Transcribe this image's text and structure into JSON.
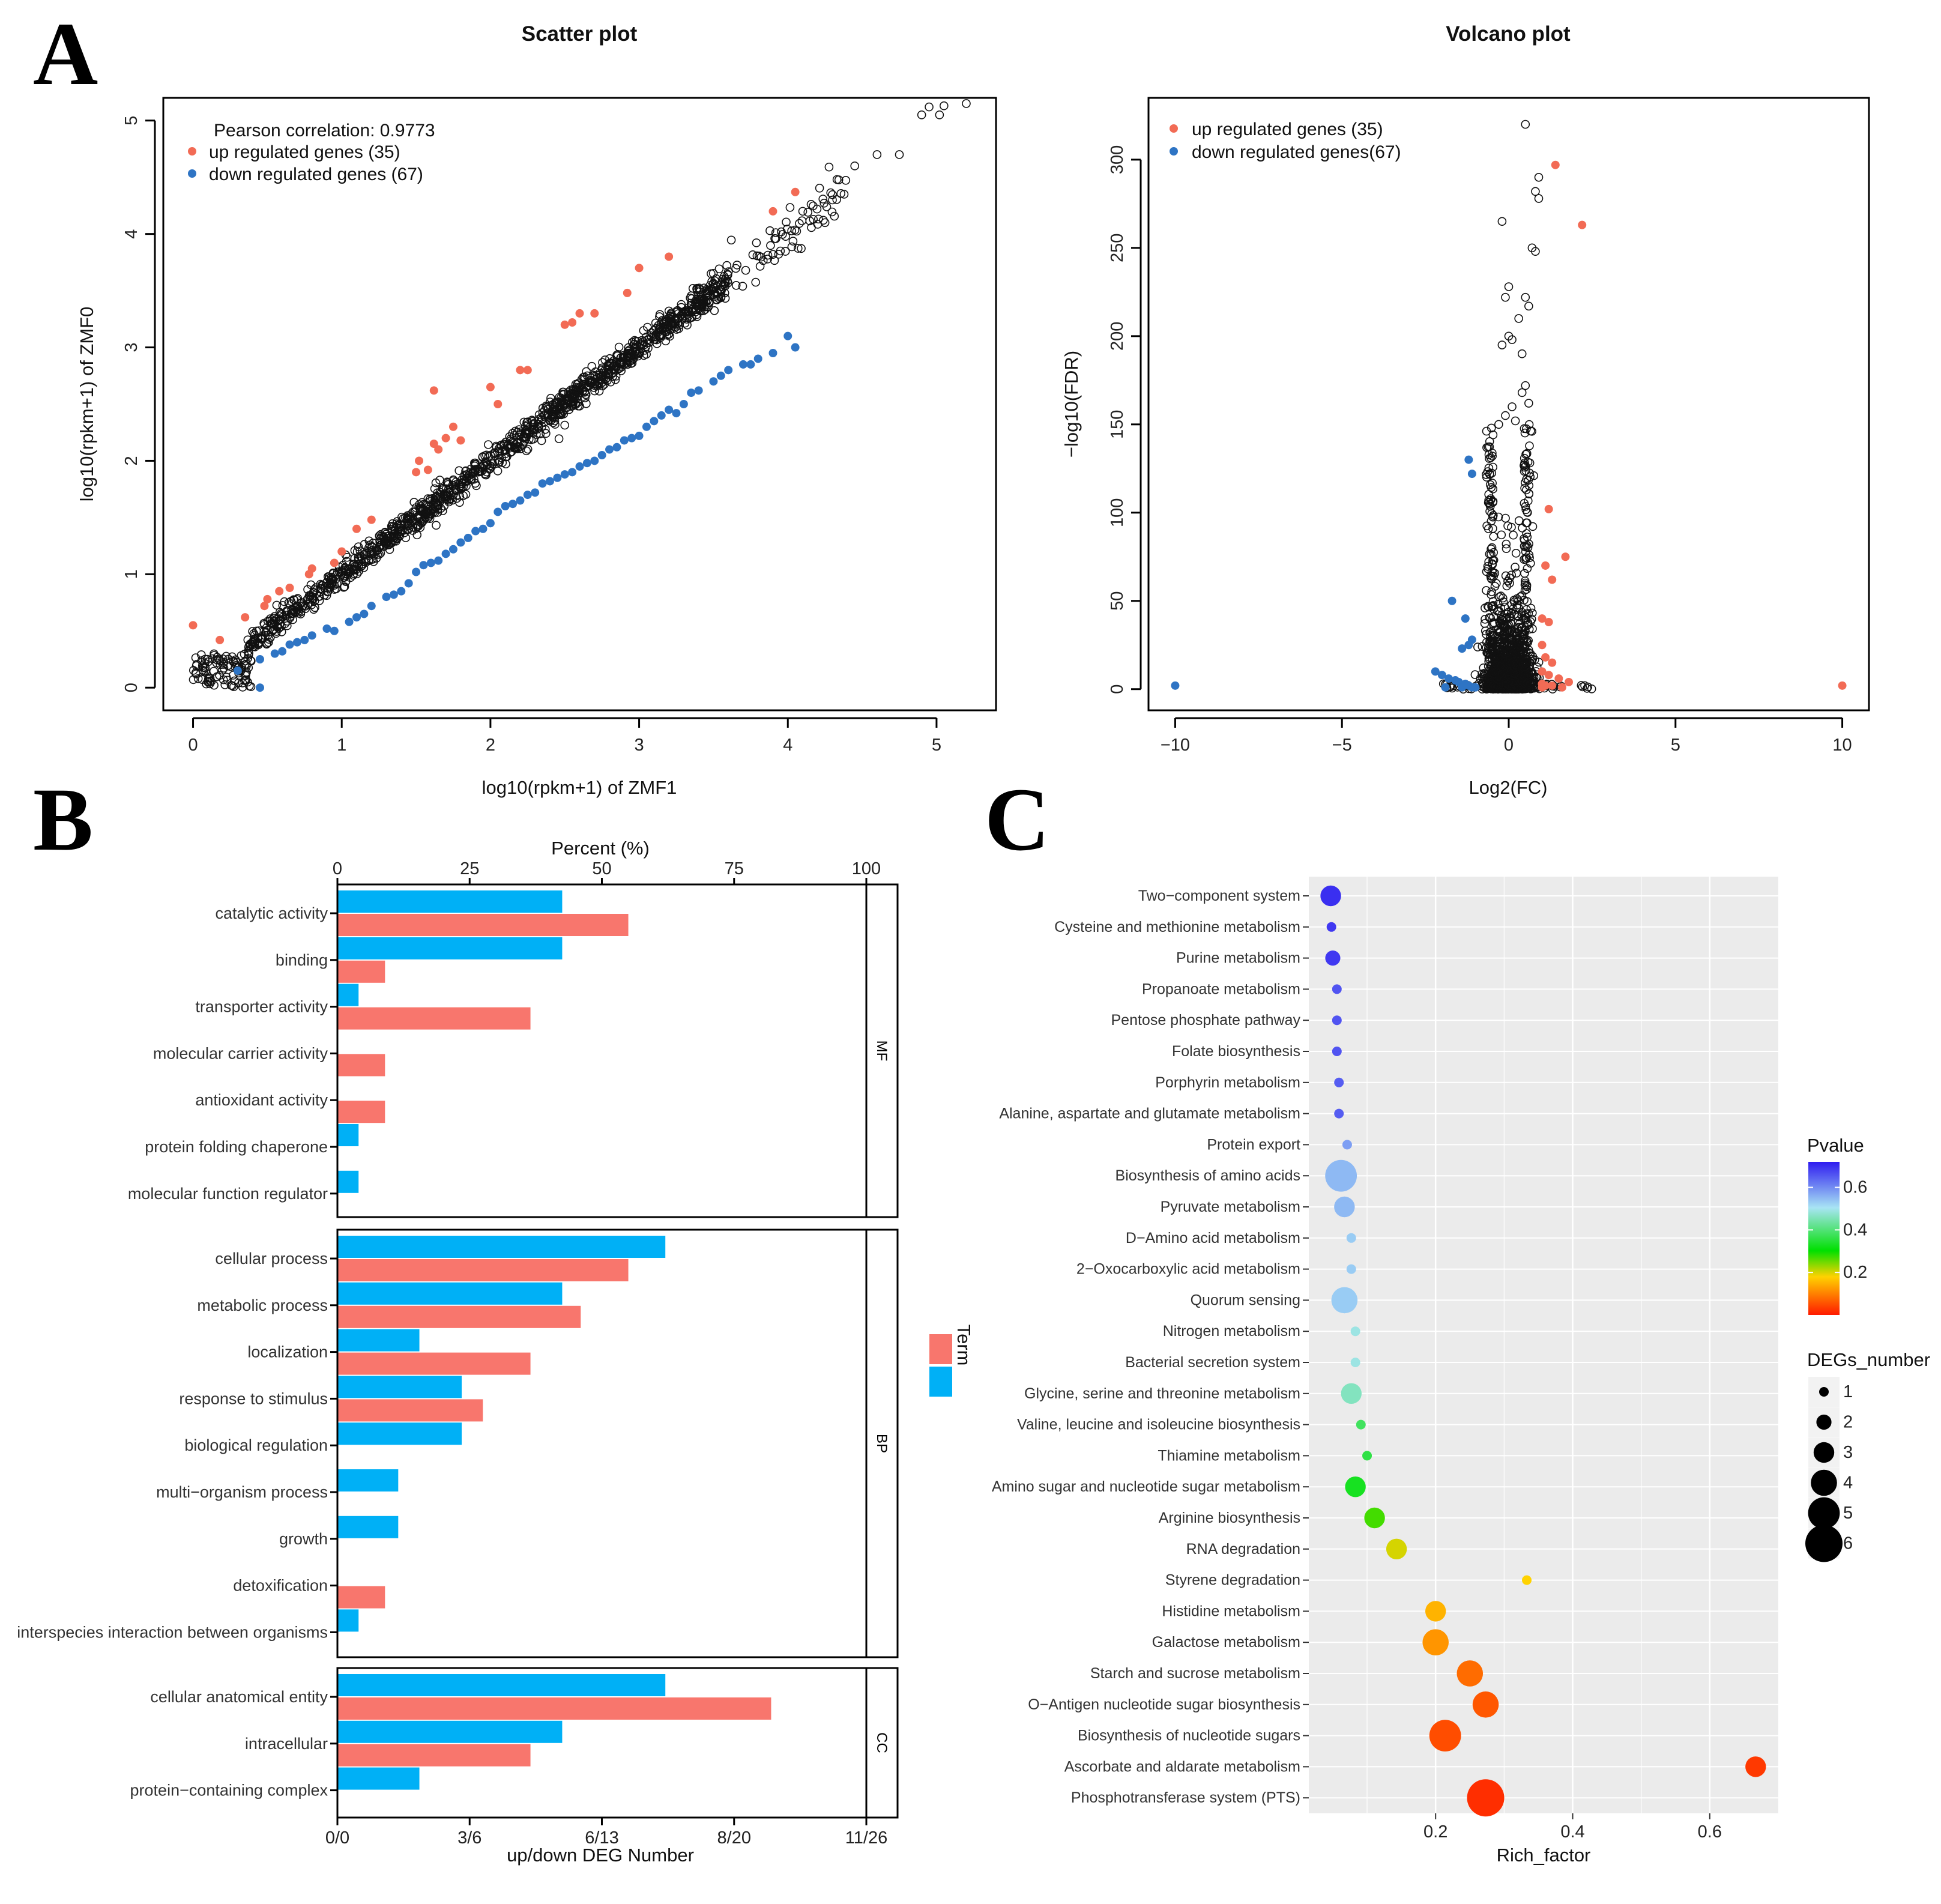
{
  "panels": {
    "a": "A",
    "b": "B",
    "c": "C"
  },
  "colors": {
    "up": "#f26b55",
    "down": "#2e74c4",
    "bar_up": "#f8766d",
    "bar_down": "#00b0f6",
    "kegg_bg": "#ebebeb",
    "kegg_grid": "#ffffff"
  },
  "chart_data": [
    {
      "type": "scatter",
      "title": "Scatter plot",
      "xlabel": "log10(rpkm+1) of ZMF1",
      "ylabel": "log10(rpkm+1) of ZMF0",
      "xlim": [
        -0.2,
        5.4
      ],
      "ylim": [
        -0.2,
        5.2
      ],
      "xticks": [
        0,
        1,
        2,
        3,
        4,
        5
      ],
      "yticks": [
        0,
        1,
        2,
        3,
        4,
        5
      ],
      "annotation": "Pearson correlation: 0.9773",
      "legend": [
        "up  regulated genes (35)",
        "down  regulated genes (67)"
      ],
      "legend_position": "top-left",
      "series": [
        {
          "name": "up regulated",
          "points": [
            [
              0,
              0.55
            ],
            [
              0.18,
              0.42
            ],
            [
              0.35,
              0.62
            ],
            [
              0.48,
              0.72
            ],
            [
              0.5,
              0.78
            ],
            [
              0.58,
              0.85
            ],
            [
              0.65,
              0.88
            ],
            [
              0.78,
              1.0
            ],
            [
              0.8,
              1.05
            ],
            [
              0.95,
              1.1
            ],
            [
              1.0,
              1.2
            ],
            [
              1.1,
              1.4
            ],
            [
              1.2,
              1.48
            ],
            [
              1.5,
              1.9
            ],
            [
              1.58,
              1.92
            ],
            [
              1.62,
              2.62
            ],
            [
              1.52,
              2.0
            ],
            [
              1.65,
              2.1
            ],
            [
              1.62,
              2.15
            ],
            [
              1.7,
              2.2
            ],
            [
              1.75,
              2.3
            ],
            [
              1.8,
              2.18
            ],
            [
              2.0,
              2.65
            ],
            [
              2.05,
              2.5
            ],
            [
              2.2,
              2.8
            ],
            [
              2.25,
              2.8
            ],
            [
              2.5,
              3.2
            ],
            [
              2.55,
              3.22
            ],
            [
              2.6,
              3.3
            ],
            [
              2.7,
              3.3
            ],
            [
              2.92,
              3.48
            ],
            [
              3.0,
              3.7
            ],
            [
              3.2,
              3.8
            ],
            [
              3.9,
              4.2
            ],
            [
              4.05,
              4.37
            ]
          ]
        },
        {
          "name": "down regulated",
          "points": [
            [
              0.3,
              0.15
            ],
            [
              0.45,
              0.0
            ],
            [
              0.45,
              0.25
            ],
            [
              0.55,
              0.3
            ],
            [
              0.6,
              0.32
            ],
            [
              0.65,
              0.38
            ],
            [
              0.7,
              0.4
            ],
            [
              0.75,
              0.42
            ],
            [
              0.8,
              0.46
            ],
            [
              0.9,
              0.52
            ],
            [
              0.95,
              0.5
            ],
            [
              1.05,
              0.58
            ],
            [
              1.1,
              0.62
            ],
            [
              1.15,
              0.65
            ],
            [
              1.2,
              0.72
            ],
            [
              1.3,
              0.8
            ],
            [
              1.35,
              0.82
            ],
            [
              1.4,
              0.85
            ],
            [
              1.45,
              0.92
            ],
            [
              1.5,
              1.02
            ],
            [
              1.55,
              1.08
            ],
            [
              1.6,
              1.1
            ],
            [
              1.65,
              1.12
            ],
            [
              1.7,
              1.18
            ],
            [
              1.75,
              1.22
            ],
            [
              1.8,
              1.28
            ],
            [
              1.85,
              1.32
            ],
            [
              1.9,
              1.38
            ],
            [
              1.95,
              1.4
            ],
            [
              2.0,
              1.45
            ],
            [
              2.05,
              1.55
            ],
            [
              2.1,
              1.6
            ],
            [
              2.15,
              1.62
            ],
            [
              2.2,
              1.65
            ],
            [
              2.25,
              1.7
            ],
            [
              2.3,
              1.72
            ],
            [
              2.35,
              1.8
            ],
            [
              2.4,
              1.82
            ],
            [
              2.45,
              1.85
            ],
            [
              2.5,
              1.88
            ],
            [
              2.55,
              1.9
            ],
            [
              2.6,
              1.95
            ],
            [
              2.65,
              1.98
            ],
            [
              2.7,
              2.0
            ],
            [
              2.75,
              2.05
            ],
            [
              2.8,
              2.1
            ],
            [
              2.85,
              2.12
            ],
            [
              2.9,
              2.18
            ],
            [
              2.95,
              2.2
            ],
            [
              3.0,
              2.22
            ],
            [
              3.05,
              2.3
            ],
            [
              3.1,
              2.35
            ],
            [
              3.15,
              2.4
            ],
            [
              3.2,
              2.45
            ],
            [
              3.25,
              2.42
            ],
            [
              3.3,
              2.5
            ],
            [
              3.35,
              2.6
            ],
            [
              3.4,
              2.62
            ],
            [
              3.5,
              2.7
            ],
            [
              3.55,
              2.75
            ],
            [
              3.6,
              2.8
            ],
            [
              3.7,
              2.85
            ],
            [
              3.75,
              2.85
            ],
            [
              3.8,
              2.9
            ],
            [
              3.9,
              2.95
            ],
            [
              4.0,
              3.1
            ],
            [
              4.05,
              3.0
            ]
          ]
        },
        {
          "name": "other genes",
          "points": "dense cloud along y = x from 0 to 5.2"
        }
      ]
    },
    {
      "type": "scatter",
      "title": "Volcano plot",
      "xlabel": "Log2(FC)",
      "ylabel": "−log10(FDR)",
      "xlim": [
        -10.8,
        10.8
      ],
      "ylim": [
        -12,
        335
      ],
      "xticks": [
        -10,
        -5,
        0,
        5,
        10
      ],
      "yticks": [
        0,
        50,
        100,
        150,
        200,
        250,
        300
      ],
      "legend": [
        "up  regulated genes (35)",
        "down  regulated genes(67)"
      ],
      "legend_position": "top-left",
      "series": [
        {
          "name": "up regulated",
          "points": [
            [
              1.4,
              297
            ],
            [
              2.2,
              263
            ],
            [
              1.2,
              102
            ],
            [
              1.7,
              75
            ],
            [
              1.1,
              70
            ],
            [
              1.3,
              62
            ],
            [
              1.0,
              40
            ],
            [
              1.2,
              38
            ],
            [
              1.0,
              25
            ],
            [
              1.1,
              18
            ],
            [
              1.3,
              15
            ],
            [
              1.0,
              10
            ],
            [
              1.2,
              8
            ],
            [
              1.5,
              6
            ],
            [
              1.8,
              4
            ],
            [
              1.0,
              3
            ],
            [
              1.1,
              2
            ],
            [
              1.3,
              2
            ],
            [
              1.6,
              1
            ],
            [
              1.0,
              1
            ],
            [
              10.0,
              2
            ]
          ]
        },
        {
          "name": "down regulated",
          "points": [
            [
              -10.0,
              2
            ],
            [
              -1.2,
              130
            ],
            [
              -1.1,
              122
            ],
            [
              -1.7,
              50
            ],
            [
              -1.3,
              40
            ],
            [
              -1.1,
              28
            ],
            [
              -1.2,
              25
            ],
            [
              -1.4,
              23
            ],
            [
              -2.2,
              10
            ],
            [
              -2.0,
              8
            ],
            [
              -1.8,
              6
            ],
            [
              -1.6,
              5
            ],
            [
              -1.5,
              4
            ],
            [
              -1.3,
              3
            ],
            [
              -1.2,
              2
            ],
            [
              -1.1,
              1
            ],
            [
              -1.9,
              1
            ],
            [
              -1.4,
              1
            ],
            [
              -1.0,
              1
            ]
          ]
        },
        {
          "name": "other genes",
          "points": [
            [
              0.5,
              320
            ],
            [
              0.9,
              290
            ],
            [
              0.8,
              282
            ],
            [
              0.9,
              278
            ],
            [
              -0.2,
              265
            ],
            [
              0.7,
              250
            ],
            [
              0.8,
              248
            ],
            [
              0.0,
              228
            ],
            [
              -0.1,
              222
            ],
            [
              0.5,
              222
            ],
            [
              0.6,
              217
            ],
            [
              0.3,
              210
            ],
            [
              0.0,
              200
            ],
            [
              0.1,
              198
            ],
            [
              -0.2,
              195
            ],
            [
              0.4,
              190
            ],
            [
              0.5,
              172
            ],
            [
              0.4,
              168
            ],
            [
              0.6,
              162
            ],
            [
              0.1,
              160
            ],
            [
              -0.1,
              155
            ],
            [
              0.2,
              152
            ],
            [
              -0.3,
              150
            ]
          ]
        }
      ]
    },
    {
      "type": "bar",
      "orientation": "horizontal",
      "top_axis_label": "Percent (%)",
      "top_ticks": [
        "0",
        "25",
        "50",
        "75",
        "100"
      ],
      "xlabel": "up/down DEG Number",
      "bottom_ticks": [
        "0/0",
        "3/6",
        "6/13",
        "8/20",
        "11/26"
      ],
      "legend_title": "Term",
      "legend_position": "right",
      "groups": [
        {
          "name": "MF",
          "categories": [
            {
              "name": "catalytic activity",
              "down": 42.5,
              "up": 55
            },
            {
              "name": "binding",
              "down": 42.5,
              "up": 9
            },
            {
              "name": "transporter activity",
              "down": 4,
              "up": 36.5
            },
            {
              "name": "molecular carrier activity",
              "down": 0,
              "up": 9
            },
            {
              "name": "antioxidant activity",
              "down": 0,
              "up": 9
            },
            {
              "name": "protein folding chaperone",
              "down": 4,
              "up": 0
            },
            {
              "name": "molecular function regulator",
              "down": 4,
              "up": 0
            }
          ]
        },
        {
          "name": "BP",
          "categories": [
            {
              "name": "cellular process",
              "down": 62,
              "up": 55
            },
            {
              "name": "metabolic process",
              "down": 42.5,
              "up": 46
            },
            {
              "name": "localization",
              "down": 15.5,
              "up": 36.5
            },
            {
              "name": "response to stimulus",
              "down": 23.5,
              "up": 27.5
            },
            {
              "name": "biological regulation",
              "down": 23.5,
              "up": 0
            },
            {
              "name": "multi−organism process",
              "down": 11.5,
              "up": 0
            },
            {
              "name": "growth",
              "down": 11.5,
              "up": 0
            },
            {
              "name": "detoxification",
              "down": 0,
              "up": 9
            },
            {
              "name": "interspecies interaction between organisms",
              "down": 4,
              "up": 0
            }
          ]
        },
        {
          "name": "CC",
          "categories": [
            {
              "name": "cellular anatomical entity",
              "down": 62,
              "up": 82
            },
            {
              "name": "intracellular",
              "down": 42.5,
              "up": 36.5
            },
            {
              "name": "protein−containing complex",
              "down": 15.5,
              "up": 0
            }
          ]
        }
      ]
    },
    {
      "type": "scatter",
      "subtype": "bubble",
      "xlabel": "Rich_factor",
      "xlim": [
        0.015,
        0.7
      ],
      "xticks": [
        0.2,
        0.4,
        0.6
      ],
      "color_legend_title": "Pvalue",
      "color_ticks": [
        0.6,
        0.4,
        0.2
      ],
      "size_legend_title": "DEGs_number",
      "size_ticks": [
        1,
        2,
        3,
        4,
        5,
        6
      ],
      "categories": [
        "Two−component system",
        "Cysteine and methionine metabolism",
        "Purine metabolism",
        "Propanoate metabolism",
        "Pentose phosphate pathway",
        "Folate biosynthesis",
        "Porphyrin metabolism",
        "Alanine, aspartate and glutamate metabolism",
        "Protein export",
        "Biosynthesis of amino acids",
        "Pyruvate metabolism",
        "D−Amino acid metabolism",
        "2−Oxocarboxylic acid metabolism",
        "Quorum sensing",
        "Nitrogen metabolism",
        "Bacterial secretion system",
        "Glycine, serine and threonine metabolism",
        "Valine, leucine and isoleucine biosynthesis",
        "Thiamine metabolism",
        "Amino sugar and nucleotide sugar metabolism",
        "Arginine biosynthesis",
        "RNA degradation",
        "Styrene degradation",
        "Histidine metabolism",
        "Galactose metabolism",
        "Starch and sucrose metabolism",
        "O−Antigen nucleotide sugar biosynthesis",
        "Biosynthesis of nucleotide sugars",
        "Ascorbate and aldarate metabolism",
        "Phosphotransferase system (PTS)"
      ],
      "rich_factor": [
        0.047,
        0.048,
        0.05,
        0.056,
        0.056,
        0.056,
        0.059,
        0.059,
        0.071,
        0.062,
        0.067,
        0.077,
        0.077,
        0.067,
        0.083,
        0.083,
        0.077,
        0.091,
        0.1,
        0.083,
        0.111,
        0.143,
        0.333,
        0.2,
        0.2,
        0.25,
        0.273,
        0.214,
        0.667,
        0.273
      ],
      "degs_number": [
        3,
        1,
        2,
        1,
        1,
        1,
        1,
        1,
        1,
        5,
        3,
        1,
        1,
        4,
        1,
        1,
        3,
        1,
        1,
        3,
        3,
        3,
        1,
        3,
        4,
        4,
        4,
        5,
        3,
        6
      ],
      "pvalue": [
        0.7,
        0.69,
        0.69,
        0.66,
        0.66,
        0.66,
        0.65,
        0.65,
        0.58,
        0.55,
        0.55,
        0.53,
        0.53,
        0.53,
        0.49,
        0.49,
        0.46,
        0.38,
        0.36,
        0.33,
        0.27,
        0.2,
        0.18,
        0.15,
        0.12,
        0.08,
        0.06,
        0.05,
        0.03,
        0.02
      ]
    }
  ]
}
